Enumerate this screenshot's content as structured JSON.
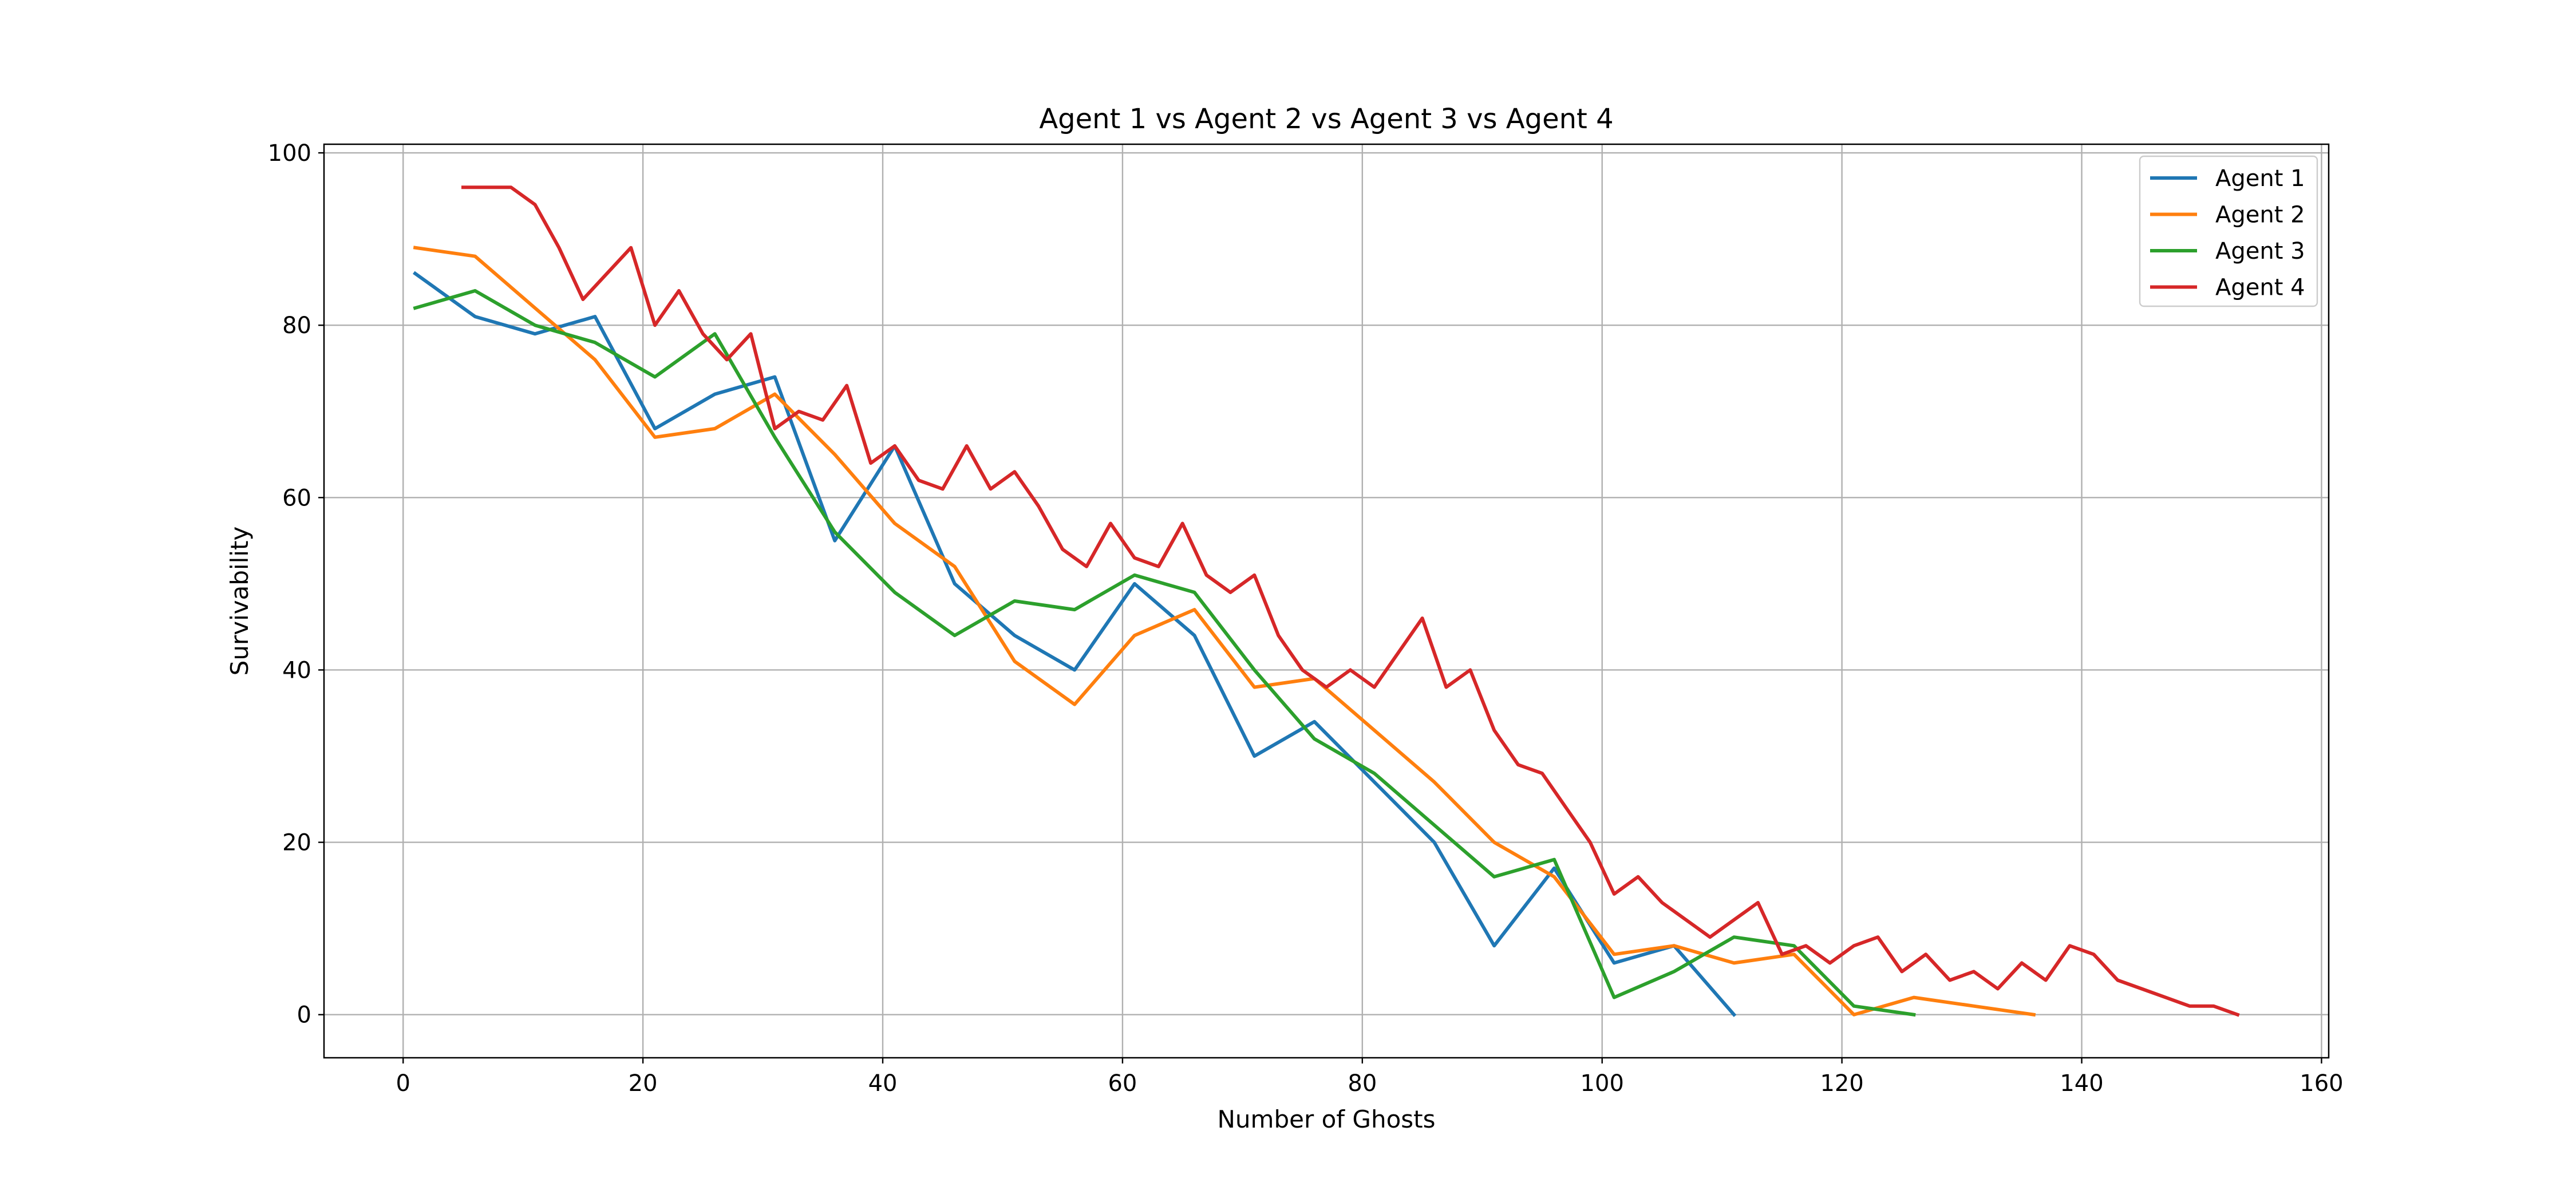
{
  "chart_data": {
    "type": "line",
    "title": "Agent 1 vs Agent 2 vs Agent 3 vs Agent 4",
    "xlabel": "Number of Ghosts",
    "ylabel": "Survivability",
    "xlim": [
      -6.6,
      160.6
    ],
    "ylim": [
      -5,
      101
    ],
    "xticks": [
      0,
      20,
      40,
      60,
      80,
      100,
      120,
      140,
      160
    ],
    "yticks": [
      0,
      20,
      40,
      60,
      80,
      100
    ],
    "grid": true,
    "legend_position": "top-right",
    "series": [
      {
        "name": "Agent 1",
        "color": "#1f77b4",
        "points": [
          [
            1,
            86
          ],
          [
            6,
            81
          ],
          [
            11,
            79
          ],
          [
            16,
            81
          ],
          [
            21,
            68
          ],
          [
            26,
            72
          ],
          [
            31,
            74
          ],
          [
            36,
            55
          ],
          [
            41,
            66
          ],
          [
            46,
            50
          ],
          [
            51,
            44
          ],
          [
            56,
            40
          ],
          [
            61,
            50
          ],
          [
            66,
            44
          ],
          [
            71,
            30
          ],
          [
            76,
            34
          ],
          [
            81,
            27
          ],
          [
            86,
            20
          ],
          [
            91,
            8
          ],
          [
            96,
            17
          ],
          [
            101,
            6
          ],
          [
            106,
            8
          ],
          [
            111,
            0
          ]
        ]
      },
      {
        "name": "Agent 2",
        "color": "#ff7f0e",
        "points": [
          [
            1,
            89
          ],
          [
            6,
            88
          ],
          [
            11,
            82
          ],
          [
            16,
            76
          ],
          [
            21,
            67
          ],
          [
            26,
            68
          ],
          [
            31,
            72
          ],
          [
            36,
            65
          ],
          [
            41,
            57
          ],
          [
            46,
            52
          ],
          [
            51,
            41
          ],
          [
            56,
            36
          ],
          [
            61,
            44
          ],
          [
            66,
            47
          ],
          [
            71,
            38
          ],
          [
            76,
            39
          ],
          [
            81,
            33
          ],
          [
            86,
            27
          ],
          [
            91,
            20
          ],
          [
            96,
            16
          ],
          [
            101,
            7
          ],
          [
            106,
            8
          ],
          [
            111,
            6
          ],
          [
            116,
            7
          ],
          [
            121,
            0
          ],
          [
            126,
            2
          ],
          [
            131,
            1
          ],
          [
            136,
            0
          ]
        ]
      },
      {
        "name": "Agent 3",
        "color": "#2ca02c",
        "points": [
          [
            1,
            82
          ],
          [
            6,
            84
          ],
          [
            11,
            80
          ],
          [
            16,
            78
          ],
          [
            21,
            74
          ],
          [
            26,
            79
          ],
          [
            31,
            67
          ],
          [
            36,
            56
          ],
          [
            41,
            49
          ],
          [
            46,
            44
          ],
          [
            51,
            48
          ],
          [
            56,
            47
          ],
          [
            61,
            51
          ],
          [
            66,
            49
          ],
          [
            71,
            40
          ],
          [
            76,
            32
          ],
          [
            81,
            28
          ],
          [
            86,
            22
          ],
          [
            91,
            16
          ],
          [
            96,
            18
          ],
          [
            101,
            2
          ],
          [
            106,
            5
          ],
          [
            111,
            9
          ],
          [
            116,
            8
          ],
          [
            121,
            1
          ],
          [
            126,
            0
          ]
        ]
      },
      {
        "name": "Agent 4",
        "color": "#d62728",
        "points": [
          [
            5,
            96
          ],
          [
            7,
            96
          ],
          [
            9,
            96
          ],
          [
            11,
            94
          ],
          [
            13,
            89
          ],
          [
            15,
            83
          ],
          [
            17,
            86
          ],
          [
            19,
            89
          ],
          [
            21,
            80
          ],
          [
            23,
            84
          ],
          [
            25,
            79
          ],
          [
            27,
            76
          ],
          [
            29,
            79
          ],
          [
            31,
            68
          ],
          [
            33,
            70
          ],
          [
            35,
            69
          ],
          [
            37,
            73
          ],
          [
            39,
            64
          ],
          [
            41,
            66
          ],
          [
            43,
            62
          ],
          [
            45,
            61
          ],
          [
            47,
            66
          ],
          [
            49,
            61
          ],
          [
            51,
            63
          ],
          [
            53,
            59
          ],
          [
            55,
            54
          ],
          [
            57,
            52
          ],
          [
            59,
            57
          ],
          [
            61,
            53
          ],
          [
            63,
            52
          ],
          [
            65,
            57
          ],
          [
            67,
            51
          ],
          [
            69,
            49
          ],
          [
            71,
            51
          ],
          [
            73,
            44
          ],
          [
            75,
            40
          ],
          [
            77,
            38
          ],
          [
            79,
            40
          ],
          [
            81,
            38
          ],
          [
            83,
            42
          ],
          [
            85,
            46
          ],
          [
            87,
            38
          ],
          [
            89,
            40
          ],
          [
            91,
            33
          ],
          [
            93,
            29
          ],
          [
            95,
            28
          ],
          [
            97,
            24
          ],
          [
            99,
            20
          ],
          [
            101,
            14
          ],
          [
            103,
            16
          ],
          [
            105,
            13
          ],
          [
            107,
            11
          ],
          [
            109,
            9
          ],
          [
            111,
            11
          ],
          [
            113,
            13
          ],
          [
            115,
            7
          ],
          [
            117,
            8
          ],
          [
            119,
            6
          ],
          [
            121,
            8
          ],
          [
            123,
            9
          ],
          [
            125,
            5
          ],
          [
            127,
            7
          ],
          [
            129,
            4
          ],
          [
            131,
            5
          ],
          [
            133,
            3
          ],
          [
            135,
            6
          ],
          [
            137,
            4
          ],
          [
            139,
            8
          ],
          [
            141,
            7
          ],
          [
            143,
            4
          ],
          [
            145,
            3
          ],
          [
            147,
            2
          ],
          [
            149,
            1
          ],
          [
            151,
            1
          ],
          [
            153,
            0
          ]
        ]
      }
    ]
  }
}
